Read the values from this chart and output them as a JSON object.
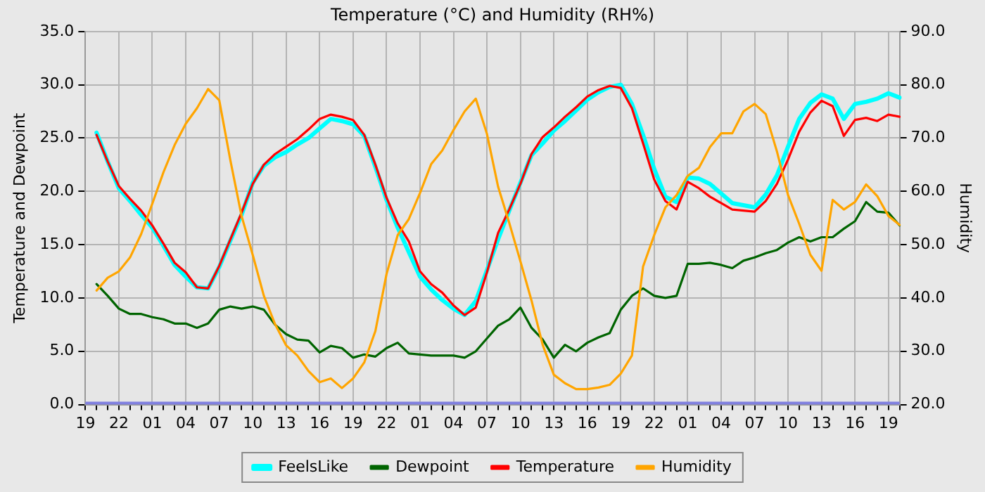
{
  "chart_data": {
    "type": "line",
    "title": "Temperature (°C) and Humidity (RH%)",
    "ylabel": "Temperature and Dewpoint",
    "y2label": "Humidity",
    "categories": [
      "19",
      null,
      null,
      "22",
      null,
      null,
      "01",
      null,
      null,
      "04",
      null,
      null,
      "07",
      null,
      null,
      "10",
      null,
      null,
      "13",
      null,
      null,
      "16",
      null,
      null,
      "19",
      null,
      null,
      "22",
      null,
      null,
      "01",
      null,
      null,
      "04",
      null,
      null,
      "07",
      null,
      null,
      "10",
      null,
      null,
      "13",
      null,
      null,
      "16",
      null,
      null,
      "19",
      null,
      null,
      "22",
      null,
      null,
      "01",
      null,
      null,
      "04",
      null,
      null,
      "07",
      null,
      null,
      "10",
      null,
      null,
      "13",
      null,
      null,
      "16",
      null,
      null,
      "19",
      null
    ],
    "ylim": [
      0,
      35
    ],
    "yticks": [
      {
        "value": 0,
        "label": "0.0"
      },
      {
        "value": 5,
        "label": "5.0"
      },
      {
        "value": 10,
        "label": "10.0"
      },
      {
        "value": 15,
        "label": "15.0"
      },
      {
        "value": 20,
        "label": "20.0"
      },
      {
        "value": 25,
        "label": "25.0"
      },
      {
        "value": 30,
        "label": "30.0"
      },
      {
        "value": 35,
        "label": "35.0"
      }
    ],
    "y2lim": [
      20,
      90
    ],
    "y2ticks": [
      {
        "value": 20,
        "label": "20.0"
      },
      {
        "value": 30,
        "label": "30.0"
      },
      {
        "value": 40,
        "label": "40.0"
      },
      {
        "value": 50,
        "label": "50.0"
      },
      {
        "value": 60,
        "label": "60.0"
      },
      {
        "value": 70,
        "label": "70.0"
      },
      {
        "value": 80,
        "label": "80.0"
      },
      {
        "value": 90,
        "label": "90.0"
      }
    ],
    "grid": true,
    "legend": "bottom",
    "marker": "none",
    "line_style": "solid",
    "ref_lines": [
      {
        "axis": "y",
        "value": 0,
        "color": "#8080e0"
      }
    ],
    "series": [
      {
        "name": "FeelsLike",
        "color": "#00ffff",
        "values": [
          null,
          25.5,
          22.8,
          20.3,
          19.1,
          17.8,
          16.6,
          14.9,
          13.1,
          12.0,
          11.0,
          10.9,
          12.9,
          15.4,
          17.8,
          20.8,
          22.4,
          23.2,
          23.7,
          24.4,
          25.0,
          25.9,
          26.8,
          26.6,
          26.3,
          25.2,
          22.3,
          19.2,
          16.6,
          14.3,
          12.0,
          10.8,
          9.8,
          9.0,
          8.4,
          9.7,
          12.6,
          15.5,
          18.2,
          20.8,
          23.4,
          24.5,
          25.7,
          26.6,
          27.6,
          28.6,
          29.3,
          29.8,
          30.0,
          28.2,
          25.3,
          22.1,
          19.5,
          19.0,
          21.3,
          21.2,
          20.7,
          19.8,
          18.9,
          18.7,
          18.5,
          19.7,
          21.5,
          24.2,
          26.8,
          28.3,
          29.1,
          28.7,
          26.8,
          28.2,
          28.4,
          28.7,
          29.2,
          28.8
        ]
      },
      {
        "name": "Dewpoint",
        "color": "#006400",
        "values": [
          null,
          11.3,
          10.2,
          9.0,
          8.5,
          8.5,
          8.2,
          8.0,
          7.6,
          7.6,
          7.2,
          7.6,
          8.9,
          9.2,
          9.0,
          9.2,
          8.9,
          7.5,
          6.6,
          6.1,
          6.0,
          4.9,
          5.5,
          5.3,
          4.4,
          4.7,
          4.5,
          5.3,
          5.8,
          4.8,
          4.7,
          4.6,
          4.6,
          4.6,
          4.4,
          5.0,
          6.2,
          7.4,
          8.0,
          9.1,
          7.2,
          6.1,
          4.4,
          5.6,
          5.0,
          5.8,
          6.3,
          6.7,
          8.9,
          10.2,
          10.9,
          10.2,
          10.0,
          10.2,
          13.2,
          13.2,
          13.3,
          13.1,
          12.8,
          13.5,
          13.8,
          14.2,
          14.5,
          15.2,
          15.7,
          15.3,
          15.7,
          15.7,
          16.5,
          17.2,
          19.0,
          18.1,
          18.0,
          16.8
        ]
      },
      {
        "name": "Temperature",
        "color": "#ff0000",
        "values": [
          null,
          25.3,
          22.8,
          20.5,
          19.3,
          18.2,
          16.8,
          15.1,
          13.3,
          12.4,
          11.0,
          10.9,
          13.0,
          15.5,
          18.0,
          20.7,
          22.5,
          23.5,
          24.2,
          24.9,
          25.8,
          26.8,
          27.2,
          27.0,
          26.7,
          25.3,
          22.5,
          19.4,
          17.0,
          15.3,
          12.5,
          11.3,
          10.5,
          9.3,
          8.4,
          9.1,
          12.4,
          16.1,
          18.3,
          20.7,
          23.5,
          25.1,
          26.0,
          27.0,
          27.9,
          28.9,
          29.5,
          29.9,
          29.7,
          27.8,
          24.5,
          21.1,
          19.1,
          18.3,
          20.9,
          20.3,
          19.5,
          18.9,
          18.3,
          18.2,
          18.1,
          19.1,
          20.7,
          23.0,
          25.6,
          27.4,
          28.5,
          28.0,
          25.2,
          26.7,
          26.9,
          26.6,
          27.2,
          27.0
        ]
      },
      {
        "name": "Humidity",
        "color": "#ffa500",
        "axis": "y2",
        "values": [
          null,
          41.4,
          43.8,
          45.0,
          47.6,
          52.0,
          57.7,
          63.6,
          68.7,
          72.7,
          75.6,
          79.2,
          77.1,
          65.8,
          55.4,
          48.1,
          40.4,
          35.1,
          31.1,
          29.2,
          26.3,
          24.2,
          24.9,
          23.1,
          24.9,
          27.9,
          33.8,
          44.5,
          51.8,
          54.8,
          59.7,
          65.1,
          67.7,
          71.5,
          75.0,
          77.4,
          70.8,
          60.9,
          54.1,
          46.9,
          39.5,
          31.2,
          25.6,
          24.0,
          22.9,
          22.9,
          23.2,
          23.7,
          25.8,
          29.2,
          45.9,
          51.8,
          57.0,
          59.3,
          62.9,
          64.4,
          68.3,
          70.9,
          70.9,
          75.0,
          76.4,
          74.5,
          67.5,
          59.3,
          53.9,
          48.1,
          45.1,
          58.4,
          56.6,
          58.0,
          61.3,
          59.1,
          55.4,
          53.7
        ]
      }
    ]
  }
}
